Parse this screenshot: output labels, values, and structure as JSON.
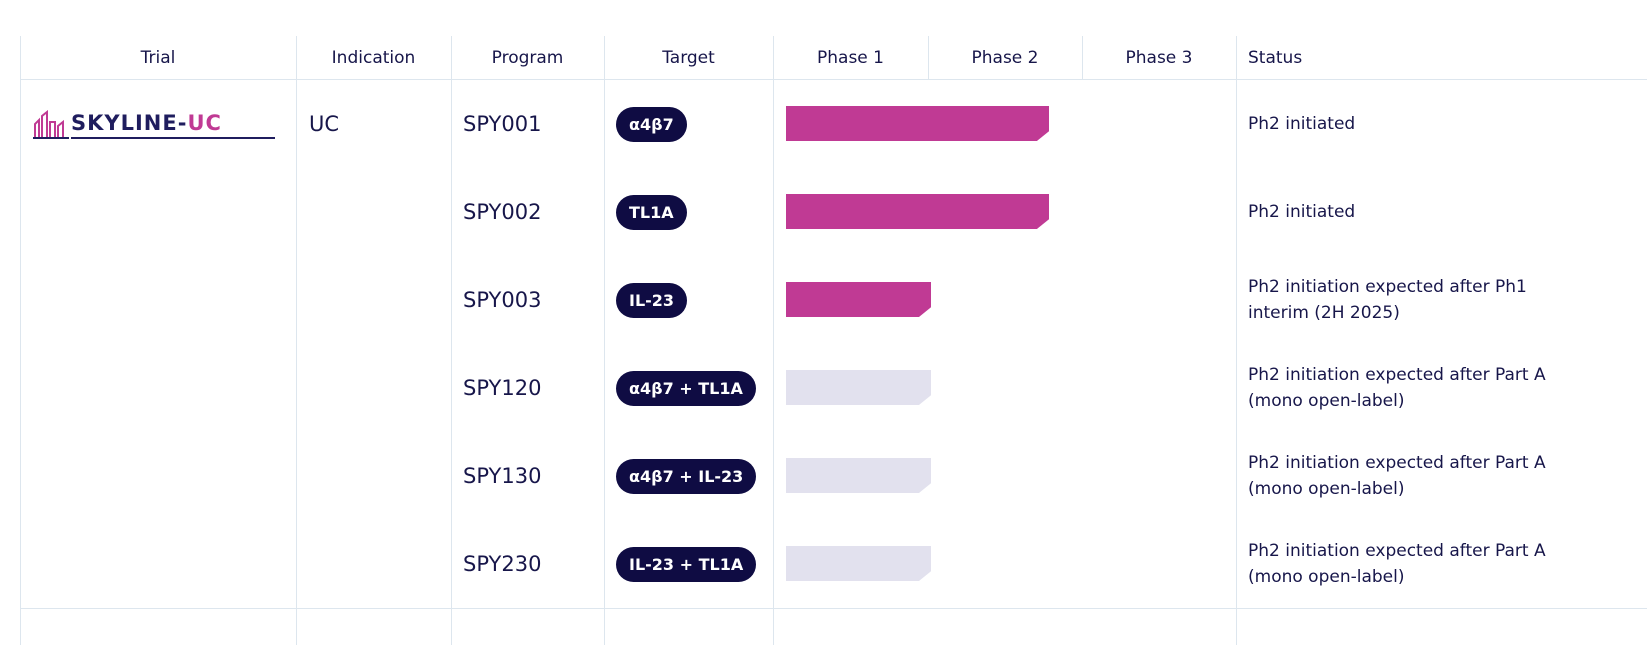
{
  "table": {
    "headers": {
      "trial": "Trial",
      "indication": "Indication",
      "program": "Program",
      "target": "Target",
      "phase1": "Phase 1",
      "phase2": "Phase 2",
      "phase3": "Phase 3",
      "status": "Status"
    },
    "trial": {
      "logo_text_main": "SKYLINE-",
      "logo_text_accent": "UC",
      "indication": "UC"
    },
    "rows": [
      {
        "program": "SPY001",
        "target": "α4β7",
        "phase_progress": "through Phase 1 into Phase 2",
        "bar_state": "active",
        "status": "Ph2 initiated"
      },
      {
        "program": "SPY002",
        "target": "TL1A",
        "phase_progress": "through Phase 1 into Phase 2",
        "bar_state": "active",
        "status": "Ph2 initiated"
      },
      {
        "program": "SPY003",
        "target": "IL-23",
        "phase_progress": "Phase 1",
        "bar_state": "active",
        "status": "Ph2 initiation expected after Ph1 interim (2H 2025)"
      },
      {
        "program": "SPY120",
        "target": "α4β7 + TL1A",
        "phase_progress": "Phase 1",
        "bar_state": "inactive",
        "status": "Ph2 initiation expected after Part A (mono open-label)"
      },
      {
        "program": "SPY130",
        "target": "α4β7 + IL-23",
        "phase_progress": "Phase 1",
        "bar_state": "inactive",
        "status": "Ph2 initiation expected after Part A (mono open-label)"
      },
      {
        "program": "SPY230",
        "target": "IL-23 + TL1A",
        "phase_progress": "Phase 1",
        "bar_state": "inactive",
        "status": "Ph2 initiation expected after Part A (mono open-label)"
      }
    ],
    "colors": {
      "active_bar": "#c03a94",
      "inactive_bar": "#e2e1ee",
      "pill_bg": "#0f0c43",
      "text": "#17164a",
      "grid": "#dde6ee"
    }
  }
}
